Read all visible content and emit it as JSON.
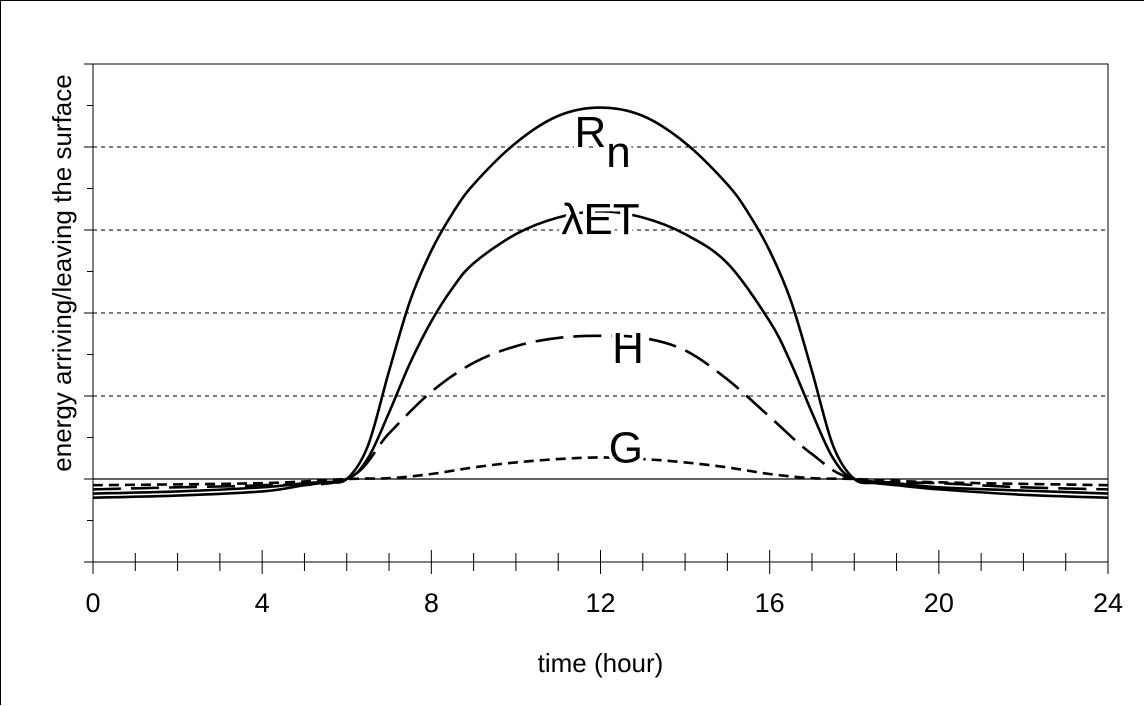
{
  "chart_data": {
    "type": "line",
    "xlabel": "time (hour)",
    "ylabel": "energy arriving/leaving the surface",
    "xlim": [
      0,
      24
    ],
    "ylim": [
      -2,
      10
    ],
    "x_ticks": [
      "0",
      "4",
      "8",
      "12",
      "16",
      "20",
      "24"
    ],
    "grid": "horizontal dashed",
    "series": [
      {
        "name": "R",
        "subscript": "n",
        "style": "solid",
        "x": [
          0,
          2,
          4,
          5,
          5.5,
          6,
          6.5,
          7,
          7.5,
          8,
          8.5,
          9,
          10,
          11,
          12,
          13,
          14,
          15,
          15.5,
          16,
          16.5,
          17,
          17.5,
          18,
          18.5,
          19,
          20,
          22,
          24
        ],
        "y": [
          -0.45,
          -0.4,
          -0.3,
          -0.15,
          -0.08,
          0,
          0.8,
          2.6,
          4.3,
          5.5,
          6.4,
          7.1,
          8.1,
          8.75,
          8.95,
          8.75,
          8.1,
          7.1,
          6.4,
          5.5,
          4.3,
          2.6,
          0.8,
          0,
          -0.1,
          -0.15,
          -0.25,
          -0.38,
          -0.45
        ]
      },
      {
        "name": "λET",
        "style": "solid",
        "x": [
          0,
          2,
          4,
          5,
          6,
          6.5,
          7,
          7.5,
          8,
          8.5,
          9,
          10,
          11,
          12,
          13,
          14,
          15,
          16,
          16.5,
          17,
          17.5,
          18,
          19,
          20,
          22,
          24
        ],
        "y": [
          -0.35,
          -0.3,
          -0.2,
          -0.1,
          0,
          0.5,
          1.6,
          2.8,
          3.8,
          4.6,
          5.2,
          5.9,
          6.3,
          6.45,
          6.3,
          5.9,
          5.2,
          3.8,
          2.8,
          1.6,
          0.5,
          0,
          -0.1,
          -0.2,
          -0.28,
          -0.35
        ]
      },
      {
        "name": "H",
        "style": "long-dash",
        "x": [
          0,
          2,
          4,
          6,
          7,
          8,
          9,
          10,
          11,
          12,
          13,
          14,
          15,
          16,
          17,
          18,
          20,
          22,
          24
        ],
        "y": [
          -0.25,
          -0.2,
          -0.15,
          0,
          1.1,
          2.1,
          2.8,
          3.2,
          3.4,
          3.45,
          3.4,
          3.1,
          2.4,
          1.5,
          0.6,
          0,
          -0.1,
          -0.2,
          -0.25
        ]
      },
      {
        "name": "G",
        "style": "short-dash",
        "x": [
          0,
          4,
          6,
          7,
          8,
          9,
          10,
          11,
          12,
          13,
          14,
          15,
          16,
          17,
          18,
          20,
          24
        ],
        "y": [
          -0.15,
          -0.1,
          0,
          0.02,
          0.12,
          0.28,
          0.4,
          0.48,
          0.52,
          0.48,
          0.4,
          0.28,
          0.12,
          0.02,
          0,
          -0.08,
          -0.15
        ]
      }
    ],
    "labels": [
      {
        "text": "R",
        "sub": "n",
        "x": 12.05,
        "y": 8.0
      },
      {
        "text": "λET",
        "x": 12.0,
        "y": 5.9
      },
      {
        "text": "H",
        "x": 12.65,
        "y": 2.8
      },
      {
        "text": "G",
        "x": 12.6,
        "y": 0.4
      }
    ]
  }
}
